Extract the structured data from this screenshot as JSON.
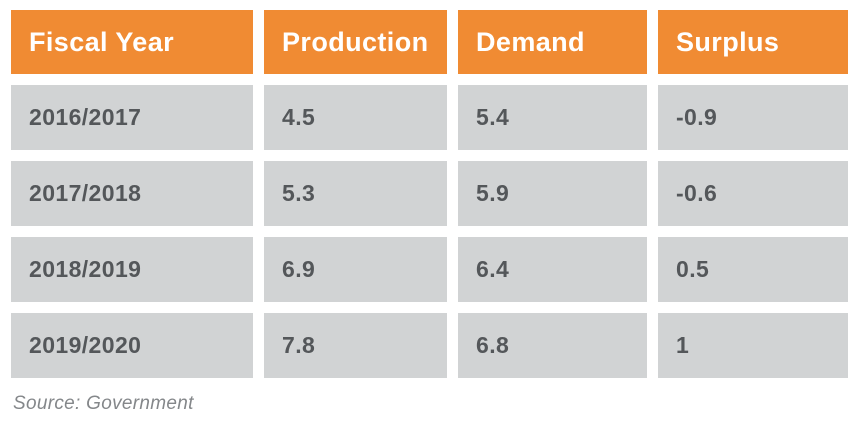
{
  "table": {
    "headers": [
      "Fiscal Year",
      "Production",
      "Demand",
      "Surplus"
    ],
    "rows": [
      [
        "2016/2017",
        "4.5",
        "5.4",
        "-0.9"
      ],
      [
        "2017/2018",
        "5.3",
        "5.9",
        "-0.6"
      ],
      [
        "2018/2019",
        "6.9",
        "6.4",
        "0.5"
      ],
      [
        "2019/2020",
        "7.8",
        "6.8",
        "1"
      ]
    ]
  },
  "source": "Source: Government",
  "colors": {
    "header_bg": "#F08B33",
    "header_text": "#FFFFFF",
    "cell_bg": "#D1D3D4",
    "cell_text": "#54575A",
    "source_text": "#84878A",
    "page_bg": "#FFFFFF"
  },
  "chart_data": {
    "type": "table",
    "columns": [
      "Fiscal Year",
      "Production",
      "Demand",
      "Surplus"
    ],
    "rows": [
      {
        "fiscal_year": "2016/2017",
        "production": 4.5,
        "demand": 5.4,
        "surplus": -0.9
      },
      {
        "fiscal_year": "2017/2018",
        "production": 5.3,
        "demand": 5.9,
        "surplus": -0.6
      },
      {
        "fiscal_year": "2018/2019",
        "production": 6.9,
        "demand": 6.4,
        "surplus": 0.5
      },
      {
        "fiscal_year": "2019/2020",
        "production": 7.8,
        "demand": 6.8,
        "surplus": 1
      }
    ],
    "title": "",
    "source": "Source: Government",
    "layout": {
      "header_style": "orange-solid",
      "row_style": "gray-separated",
      "grid": "white-gutters"
    }
  }
}
